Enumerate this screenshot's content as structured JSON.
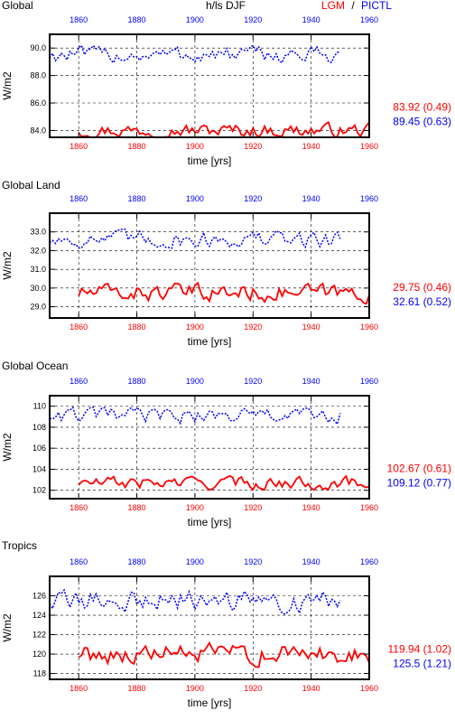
{
  "header": {
    "left": "Global",
    "center": "h/ls DJF",
    "lgm_label": "LGM",
    "separator": " / ",
    "pictl_label": "PICTL"
  },
  "colors": {
    "lgm": "#ff0000",
    "pictl": "#0000ff",
    "axes": "#000000"
  },
  "chart_data": [
    {
      "type": "line",
      "title": "",
      "xlabel": "time [yrs]",
      "ylabel": "W/m2",
      "xlim": [
        1850,
        1960
      ],
      "ylim": [
        83.5,
        91.0
      ],
      "yticks": [
        84.0,
        86.0,
        88.0,
        90.0
      ],
      "ytick_labels": [
        "84.0",
        "86.0",
        "88.0",
        "90.0"
      ],
      "xticks_bottom": [
        1860,
        1880,
        1900,
        1920,
        1940,
        1960
      ],
      "xticks_top": [
        1860,
        1880,
        1900,
        1920,
        1940,
        1960
      ],
      "grid": true,
      "series": [
        {
          "name": "LGM",
          "color": "#ff0000",
          "style": "solid",
          "x_start": 1860,
          "x_end": 1960,
          "mean": 84.0,
          "amplitude": 0.55,
          "low": 83.5,
          "high": 85.2,
          "summary": "83.92 (0.49)"
        },
        {
          "name": "PICTL",
          "color": "#0000ff",
          "style": "dotted",
          "x_start": 1850,
          "x_end": 1950,
          "mean": 89.5,
          "amplitude": 0.65,
          "low": 88.6,
          "high": 90.9,
          "summary": "89.45 (0.63)"
        }
      ]
    },
    {
      "type": "line",
      "title": "Global Land",
      "xlabel": "time [yrs]",
      "ylabel": "W/m2",
      "xlim": [
        1850,
        1960
      ],
      "ylim": [
        28.4,
        34.0
      ],
      "yticks": [
        29.0,
        30.0,
        31.0,
        32.0,
        33.0
      ],
      "ytick_labels": [
        "29.0",
        "30.0",
        "31.0",
        "32.0",
        "33.0"
      ],
      "xticks_bottom": [
        1860,
        1880,
        1900,
        1920,
        1940,
        1960
      ],
      "xticks_top": [
        1860,
        1880,
        1900,
        1920,
        1940,
        1960
      ],
      "grid": true,
      "series": [
        {
          "name": "LGM",
          "color": "#ff0000",
          "style": "solid",
          "x_start": 1860,
          "x_end": 1960,
          "mean": 29.75,
          "amplitude": 0.5,
          "low": 28.6,
          "high": 30.8,
          "summary": "29.75 (0.46)"
        },
        {
          "name": "PICTL",
          "color": "#0000ff",
          "style": "dotted",
          "x_start": 1850,
          "x_end": 1950,
          "mean": 32.6,
          "amplitude": 0.5,
          "low": 31.5,
          "high": 33.8,
          "summary": "32.61 (0.52)"
        }
      ]
    },
    {
      "type": "line",
      "title": "Global Ocean",
      "xlabel": "time [yrs]",
      "ylabel": "W/m2",
      "xlim": [
        1850,
        1960
      ],
      "ylim": [
        101.2,
        111.0
      ],
      "yticks": [
        102,
        104,
        106,
        108,
        110
      ],
      "ytick_labels": [
        "102",
        "104",
        "106",
        "108",
        "110"
      ],
      "xticks_bottom": [
        1860,
        1880,
        1900,
        1920,
        1940,
        1960
      ],
      "xticks_top": [
        1860,
        1880,
        1900,
        1920,
        1940,
        1960
      ],
      "grid": true,
      "series": [
        {
          "name": "LGM",
          "color": "#ff0000",
          "style": "solid",
          "x_start": 1860,
          "x_end": 1960,
          "mean": 102.7,
          "amplitude": 0.65,
          "low": 101.5,
          "high": 104.2,
          "summary": "102.67 (0.61)"
        },
        {
          "name": "PICTL",
          "color": "#0000ff",
          "style": "dotted",
          "x_start": 1850,
          "x_end": 1950,
          "mean": 109.1,
          "amplitude": 0.8,
          "low": 107.6,
          "high": 110.8,
          "summary": "109.12 (0.77)"
        }
      ]
    },
    {
      "type": "line",
      "title": "Tropics",
      "xlabel": "time [yrs]",
      "ylabel": "W/m2",
      "xlim": [
        1850,
        1960
      ],
      "ylim": [
        117.4,
        128.0
      ],
      "yticks": [
        118,
        120,
        122,
        124,
        126
      ],
      "ytick_labels": [
        "118",
        "120",
        "122",
        "124",
        "126"
      ],
      "xticks_bottom": [
        1860,
        1880,
        1900,
        1920,
        1940,
        1960
      ],
      "xticks_top": [
        1860,
        1880,
        1900,
        1920,
        1940,
        1960
      ],
      "grid": true,
      "series": [
        {
          "name": "LGM",
          "color": "#ff0000",
          "style": "solid",
          "x_start": 1860,
          "x_end": 1960,
          "mean": 120.0,
          "amplitude": 1.1,
          "low": 117.4,
          "high": 122.4,
          "summary": "119.94 (1.02)"
        },
        {
          "name": "PICTL",
          "color": "#0000ff",
          "style": "dotted",
          "x_start": 1850,
          "x_end": 1950,
          "mean": 125.5,
          "amplitude": 1.2,
          "low": 122.7,
          "high": 127.8,
          "summary": "125.5 (1.21)"
        }
      ]
    }
  ]
}
